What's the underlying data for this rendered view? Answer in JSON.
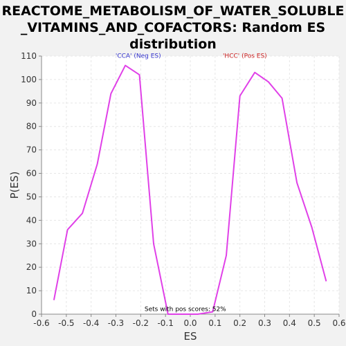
{
  "title_lines": [
    "REACTOME_METABOLISM_OF_WATER_SOLUBLE",
    "_VITAMINS_AND_COFACTORS: Random ES",
    "distribution"
  ],
  "chart_data": {
    "type": "line",
    "title": "REACTOME_METABOLISM_OF_WATER_SOLUBLE_VITAMINS_AND_COFACTORS: Random ES distribution",
    "xlabel": "ES",
    "ylabel": "P(ES)",
    "xlim": [
      -0.6,
      0.6
    ],
    "ylim": [
      0,
      110
    ],
    "x_ticks": [
      "-0.6",
      "-0.5",
      "-0.4",
      "-0.3",
      "-0.2",
      "-0.1",
      "0.0",
      "0.1",
      "0.2",
      "0.3",
      "0.4",
      "0.5",
      "0.6"
    ],
    "y_ticks": [
      "0",
      "10",
      "20",
      "30",
      "40",
      "50",
      "60",
      "70",
      "80",
      "90",
      "100",
      "110"
    ],
    "grid": true,
    "line_color": "#e040e8",
    "series": [
      {
        "x": [
          -0.55,
          -0.495,
          -0.435,
          -0.375,
          -0.32,
          -0.262,
          -0.205,
          -0.148,
          -0.09,
          -0.03,
          0.03,
          0.09,
          0.145,
          0.2,
          0.26,
          0.315,
          0.37,
          0.43,
          0.49,
          0.548
        ],
        "y": [
          6,
          36,
          43,
          64,
          94,
          106,
          102,
          30,
          0,
          0,
          0,
          1,
          25,
          93,
          103,
          99,
          92,
          56,
          37,
          14
        ]
      }
    ],
    "annotations": [
      {
        "text": "'CCA' (Neg ES)",
        "x": -0.21,
        "y": 109,
        "color": "#3333cc"
      },
      {
        "text": "'HCC' (Pos ES)",
        "x": 0.22,
        "y": 109,
        "color": "#cc2222"
      },
      {
        "text": "Sets with pos scores: 52%",
        "x": -0.02,
        "y": 1,
        "color": "#000000"
      }
    ]
  }
}
